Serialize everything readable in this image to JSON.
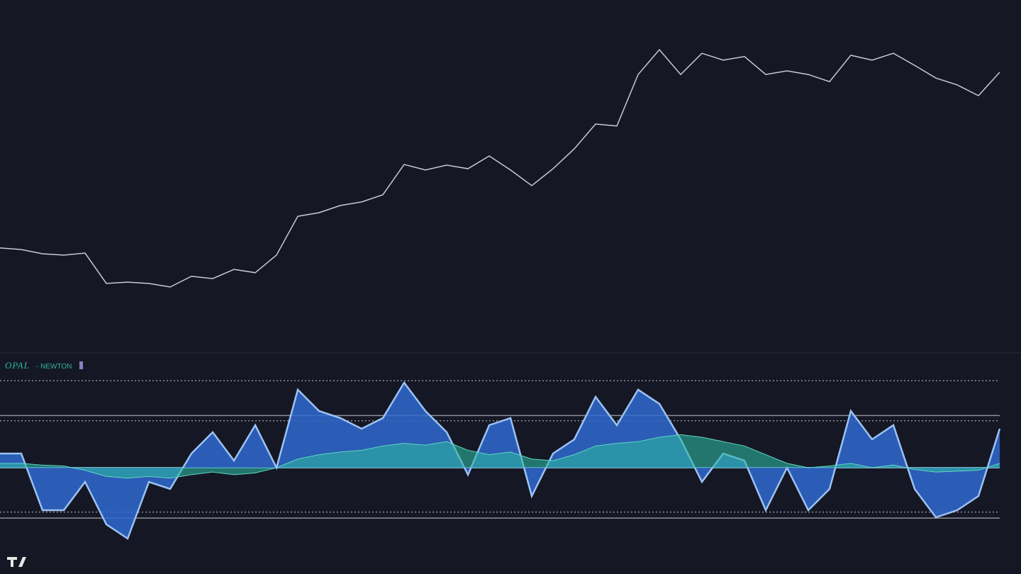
{
  "chart_data": [
    {
      "type": "line",
      "name": "price",
      "values": [
        28.3,
        27.8,
        26.5,
        26.1,
        26.7,
        17.4,
        17.8,
        17.4,
        16.3,
        19.6,
        18.9,
        21.7,
        20.7,
        26.1,
        38.0,
        39.1,
        41.3,
        42.4,
        44.6,
        53.9,
        52.2,
        53.7,
        52.6,
        56.5,
        52.2,
        47.4,
        52.6,
        58.7,
        66.3,
        65.7,
        81.5,
        89.1,
        81.5,
        88.0,
        85.9,
        87.0,
        81.5,
        82.6,
        81.5,
        79.3,
        87.4,
        85.9,
        88.0,
        84.3,
        80.4,
        78.3,
        75.0,
        82.2
      ],
      "color": "#c8cad0",
      "ylim": [
        0,
        100
      ]
    },
    {
      "type": "area",
      "title": "OPAL",
      "subtitle": "- NEWTON",
      "ylim": [
        -110,
        110
      ],
      "levels": [
        100,
        60,
        54,
        0,
        -51,
        -58
      ],
      "series": [
        {
          "color": "#2f6ad0",
          "values": [
            16.3,
            16.3,
            -48.9,
            -48.9,
            -16.3,
            -65.2,
            -81.5,
            -16.3,
            -24.4,
            16.3,
            40.8,
            8.1,
            48.9,
            0,
            89.7,
            65.2,
            57.1,
            44.8,
            57.1,
            97.8,
            65.2,
            40.8,
            -8.1,
            48.9,
            57.1,
            -32.6,
            16.3,
            32.6,
            81.5,
            48.9,
            89.7,
            73.4,
            32.6,
            -16.3,
            16.3,
            8.1,
            -48.9,
            0,
            -48.9,
            -24.4,
            65.2,
            32.6,
            48.9,
            -24.4,
            -57.1,
            -48.9,
            -32.6,
            44.8
          ]
        },
        {
          "color": "#2bb5a0",
          "values": [
            5,
            5,
            3,
            2,
            -3,
            -10,
            -12,
            -10,
            -12,
            -8,
            -5,
            -8,
            -6,
            0,
            10,
            15,
            18,
            20,
            25,
            28,
            26,
            30,
            20,
            15,
            18,
            10,
            8,
            15,
            25,
            28,
            30,
            35,
            38,
            35,
            30,
            25,
            15,
            5,
            0,
            2,
            5,
            0,
            3,
            -2,
            -5,
            -4,
            -3,
            5
          ]
        }
      ]
    }
  ]
}
